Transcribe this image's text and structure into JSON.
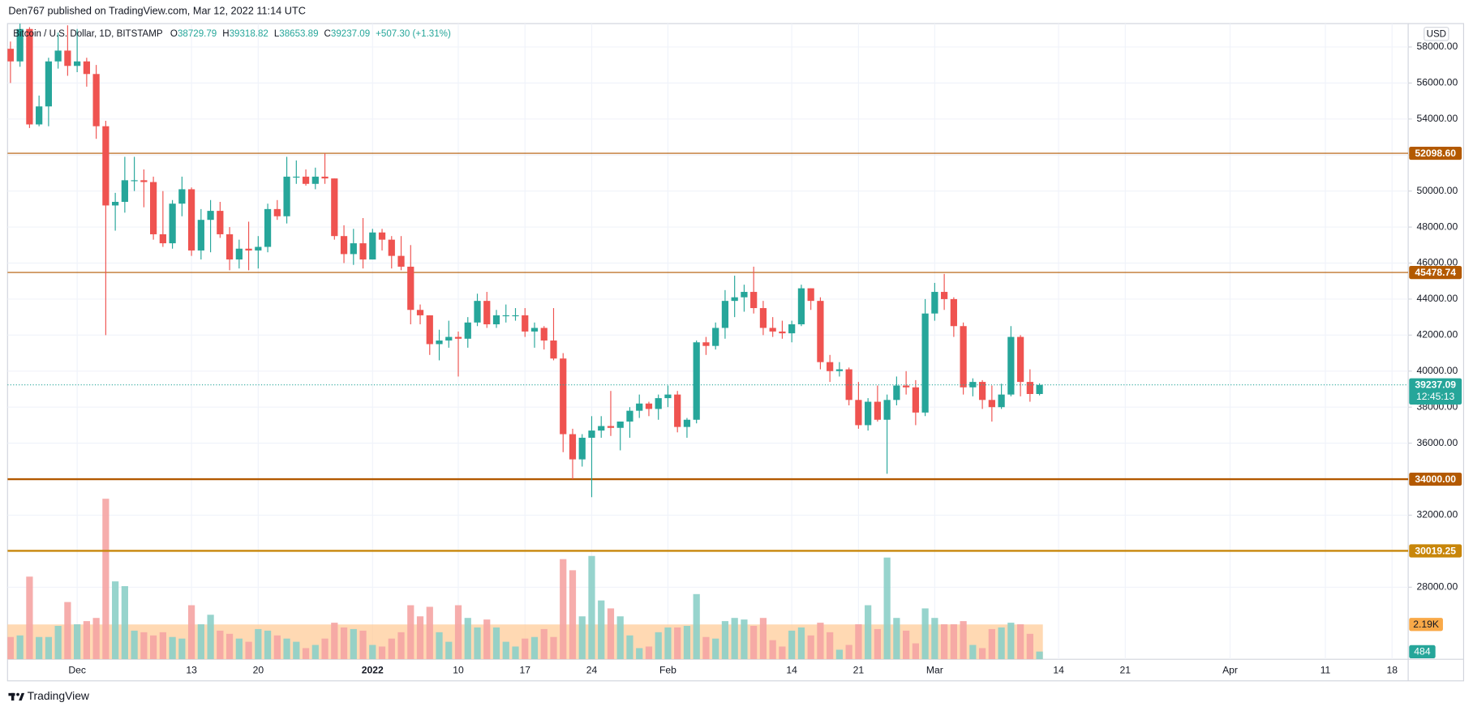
{
  "header": {
    "published": "Den767 published on TradingView.com, Mar 12, 2022 11:14 UTC"
  },
  "footer": {
    "brand": "TradingView"
  },
  "chart_data": {
    "type": "candlestick",
    "title": "Bitcoin / U.S. Dollar, 1D, BITSTAMP",
    "currency": "USD",
    "legend": {
      "o_prefix": "O",
      "h_prefix": "H",
      "l_prefix": "L",
      "c_prefix": "C",
      "change": "+507.30 (+1.31%)"
    },
    "x": [
      "2021-11-24",
      "2021-11-25",
      "2021-11-26",
      "2021-11-27",
      "2021-11-28",
      "2021-11-29",
      "2021-11-30",
      "2021-12-01",
      "2021-12-02",
      "2021-12-03",
      "2021-12-04",
      "2021-12-05",
      "2021-12-06",
      "2021-12-07",
      "2021-12-08",
      "2021-12-09",
      "2021-12-10",
      "2021-12-11",
      "2021-12-12",
      "2021-12-13",
      "2021-12-14",
      "2021-12-15",
      "2021-12-16",
      "2021-12-17",
      "2021-12-18",
      "2021-12-19",
      "2021-12-20",
      "2021-12-21",
      "2021-12-22",
      "2021-12-23",
      "2021-12-24",
      "2021-12-25",
      "2021-12-26",
      "2021-12-27",
      "2021-12-28",
      "2021-12-29",
      "2021-12-30",
      "2021-12-31",
      "2022-01-01",
      "2022-01-02",
      "2022-01-03",
      "2022-01-04",
      "2022-01-05",
      "2022-01-06",
      "2022-01-07",
      "2022-01-08",
      "2022-01-09",
      "2022-01-10",
      "2022-01-11",
      "2022-01-12",
      "2022-01-13",
      "2022-01-14",
      "2022-01-15",
      "2022-01-16",
      "2022-01-17",
      "2022-01-18",
      "2022-01-19",
      "2022-01-20",
      "2022-01-21",
      "2022-01-22",
      "2022-01-23",
      "2022-01-24",
      "2022-01-25",
      "2022-01-26",
      "2022-01-27",
      "2022-01-28",
      "2022-01-29",
      "2022-01-30",
      "2022-01-31",
      "2022-02-01",
      "2022-02-02",
      "2022-02-03",
      "2022-02-04",
      "2022-02-05",
      "2022-02-06",
      "2022-02-07",
      "2022-02-08",
      "2022-02-09",
      "2022-02-10",
      "2022-02-11",
      "2022-02-12",
      "2022-02-13",
      "2022-02-14",
      "2022-02-15",
      "2022-02-16",
      "2022-02-17",
      "2022-02-18",
      "2022-02-19",
      "2022-02-20",
      "2022-02-21",
      "2022-02-22",
      "2022-02-23",
      "2022-02-24",
      "2022-02-25",
      "2022-02-26",
      "2022-02-27",
      "2022-02-28",
      "2022-03-01",
      "2022-03-02",
      "2022-03-03",
      "2022-03-04",
      "2022-03-05",
      "2022-03-06",
      "2022-03-07",
      "2022-03-08",
      "2022-03-09",
      "2022-03-10",
      "2022-03-11",
      "2022-03-12"
    ],
    "open": [
      57900,
      57200,
      59000,
      53700,
      54700,
      57200,
      57800,
      56950,
      57200,
      56500,
      53600,
      49200,
      49400,
      50600,
      50600,
      50500,
      47600,
      47100,
      49300,
      50100,
      46700,
      48400,
      48900,
      47600,
      46200,
      46800,
      46700,
      46900,
      49000,
      48600,
      50800,
      50800,
      50400,
      50800,
      50700,
      47500,
      46500,
      47100,
      46200,
      47700,
      47300,
      46400,
      45800,
      43400,
      43100,
      41500,
      41700,
      41900,
      41800,
      42700,
      43900,
      42600,
      43100,
      43100,
      43100,
      42200,
      42400,
      41700,
      40700,
      36500,
      35100,
      36300,
      36700,
      36950,
      36850,
      37200,
      37800,
      38200,
      37900,
      38500,
      38700,
      36900,
      37300,
      41600,
      41400,
      42400,
      43900,
      44100,
      44400,
      43500,
      42400,
      42200,
      42100,
      42600,
      44600,
      43900,
      40500,
      40000,
      40100,
      38400,
      37000,
      38300,
      37300,
      38400,
      39200,
      39100,
      37700,
      43200,
      44400,
      44000,
      42500,
      39100,
      39400,
      38400,
      38000,
      38700,
      41900,
      39400,
      38729.79
    ],
    "high": [
      58300,
      59300,
      59100,
      55300,
      57400,
      58800,
      59200,
      59000,
      57400,
      57000,
      53900,
      49900,
      51900,
      51900,
      51200,
      50800,
      50000,
      49500,
      50800,
      50200,
      49000,
      49500,
      49400,
      48000,
      47300,
      48300,
      47500,
      49300,
      49500,
      51900,
      51700,
      51200,
      51300,
      52100,
      50700,
      48100,
      47900,
      48500,
      47900,
      47900,
      47500,
      47500,
      47000,
      43700,
      43100,
      42300,
      42800,
      42200,
      43000,
      44300,
      44400,
      43400,
      43700,
      43500,
      43500,
      42700,
      42500,
      43500,
      41000,
      36800,
      36500,
      37500,
      37500,
      38900,
      37200,
      38000,
      38700,
      38300,
      38700,
      39200,
      38900,
      37400,
      41700,
      41900,
      42700,
      44500,
      45300,
      44800,
      45800,
      43900,
      43000,
      42800,
      42800,
      44800,
      44600,
      44100,
      40900,
      40500,
      40200,
      39400,
      38500,
      39200,
      38700,
      39700,
      40000,
      39500,
      44000,
      44900,
      45400,
      44100,
      42700,
      39600,
      39500,
      39200,
      39300,
      42500,
      42000,
      40100,
      39318.82
    ],
    "low": [
      56000,
      56900,
      53500,
      53600,
      53600,
      56800,
      56400,
      56600,
      55800,
      52900,
      42000,
      47800,
      48800,
      50000,
      49100,
      47300,
      46900,
      46800,
      48600,
      46400,
      46200,
      46600,
      47400,
      45600,
      45700,
      45600,
      45700,
      46600,
      48400,
      48200,
      50400,
      50300,
      50100,
      50400,
      47300,
      46000,
      45900,
      45700,
      46200,
      46700,
      45700,
      45600,
      42600,
      42600,
      40900,
      40600,
      41300,
      39700,
      41300,
      42500,
      42400,
      42400,
      42700,
      42800,
      41900,
      41300,
      41200,
      40600,
      35500,
      34000,
      34700,
      33000,
      36300,
      36400,
      35600,
      36300,
      37400,
      37500,
      37300,
      38000,
      36600,
      36300,
      37100,
      40900,
      41200,
      41800,
      43000,
      43300,
      43200,
      42000,
      41900,
      41800,
      41600,
      42500,
      43400,
      40100,
      39400,
      39700,
      38100,
      36800,
      36700,
      37200,
      34300,
      38100,
      38700,
      37000,
      37500,
      42800,
      43400,
      41900,
      38700,
      38600,
      37900,
      37200,
      37900,
      38600,
      38600,
      38300,
      38653.89
    ],
    "close": [
      57200,
      59000,
      53700,
      54700,
      57200,
      57800,
      56950,
      57200,
      56500,
      53600,
      49200,
      49400,
      50600,
      50600,
      50500,
      47600,
      47100,
      49300,
      50100,
      46700,
      48400,
      48900,
      47600,
      46200,
      46800,
      46700,
      46900,
      49000,
      48600,
      50800,
      50800,
      50400,
      50800,
      50700,
      47500,
      46500,
      47100,
      46200,
      47700,
      47300,
      46400,
      45800,
      43400,
      43100,
      41500,
      41700,
      41900,
      41800,
      42700,
      43900,
      42600,
      43100,
      43100,
      43100,
      42200,
      42400,
      41700,
      40700,
      36500,
      35100,
      36300,
      36700,
      36950,
      36850,
      37200,
      37800,
      38200,
      37900,
      38500,
      38700,
      36900,
      37300,
      41600,
      41400,
      42400,
      43900,
      44100,
      44400,
      43500,
      42400,
      42200,
      42100,
      42600,
      44600,
      43900,
      40500,
      40000,
      40100,
      38400,
      37000,
      38300,
      37300,
      38400,
      39200,
      39100,
      37700,
      43200,
      44400,
      44000,
      42500,
      39100,
      39400,
      38400,
      38000,
      38700,
      41900,
      39400,
      38729.79,
      39237.09
    ],
    "up_color": "#26a69a",
    "down_color": "#ef5350",
    "xlim": [
      "2021-11-23",
      "2022-04-19"
    ],
    "xticks": [
      {
        "value": "2021-12-01",
        "label": "Dec"
      },
      {
        "value": "2021-12-13",
        "label": "13"
      },
      {
        "value": "2021-12-20",
        "label": "20"
      },
      {
        "value": "2022-01-01",
        "label": "2022"
      },
      {
        "value": "2022-01-10",
        "label": "10"
      },
      {
        "value": "2022-01-17",
        "label": "17"
      },
      {
        "value": "2022-01-24",
        "label": "24"
      },
      {
        "value": "2022-02-01",
        "label": "Feb"
      },
      {
        "value": "2022-02-14",
        "label": "14"
      },
      {
        "value": "2022-02-21",
        "label": "21"
      },
      {
        "value": "2022-03-01",
        "label": "Mar"
      },
      {
        "value": "2022-03-14",
        "label": "14"
      },
      {
        "value": "2022-03-21",
        "label": "21"
      },
      {
        "value": "2022-04-01",
        "label": "Apr"
      },
      {
        "value": "2022-04-11",
        "label": "11"
      },
      {
        "value": "2022-04-18",
        "label": "18"
      }
    ],
    "ylim": [
      24000,
      59300
    ],
    "yticks": [
      {
        "value": 28000,
        "label": "28000.00"
      },
      {
        "value": 30000,
        "label": "30000.00"
      },
      {
        "value": 32000,
        "label": "32000.00"
      },
      {
        "value": 34000,
        "label": "34000.00"
      },
      {
        "value": 36000,
        "label": "36000.00"
      },
      {
        "value": 38000,
        "label": "38000.00"
      },
      {
        "value": 40000,
        "label": "40000.00"
      },
      {
        "value": 42000,
        "label": "42000.00"
      },
      {
        "value": 44000,
        "label": "44000.00"
      },
      {
        "value": 46000,
        "label": "46000.00"
      },
      {
        "value": 48000,
        "label": "48000.00"
      },
      {
        "value": 50000,
        "label": "50000.00"
      },
      {
        "value": 52000,
        "label": "52000.00"
      },
      {
        "value": 54000,
        "label": "54000.00"
      },
      {
        "value": 56000,
        "label": "56000.00"
      },
      {
        "value": 58000,
        "label": "58000.00"
      }
    ],
    "grid": true,
    "levels": [
      {
        "value": 52098.6,
        "label": "52098.60",
        "color": "#b35900"
      },
      {
        "value": 45478.74,
        "label": "45478.74",
        "color": "#b35900"
      },
      {
        "value": 34000,
        "label": "34000.00",
        "color": "#b35900"
      },
      {
        "value": 30019.25,
        "label": "30019.25",
        "color": "#c8860a"
      }
    ],
    "countdown": "12:45:13",
    "volume": {
      "values": [
        1400,
        1500,
        5200,
        1400,
        1400,
        2100,
        3600,
        2200,
        2400,
        2600,
        10100,
        4900,
        4600,
        1800,
        1700,
        1500,
        1700,
        1400,
        1300,
        3400,
        2200,
        2800,
        1800,
        1600,
        1300,
        1100,
        1900,
        1800,
        1500,
        1300,
        1100,
        700,
        900,
        1300,
        2300,
        2000,
        1900,
        1800,
        900,
        800,
        1300,
        1700,
        3400,
        2700,
        3300,
        1700,
        1100,
        3400,
        2600,
        2000,
        2500,
        2000,
        1100,
        800,
        1300,
        1400,
        1900,
        1400,
        6300,
        5600,
        2700,
        6500,
        3700,
        3200,
        2700,
        1500,
        700,
        800,
        1700,
        2000,
        2000,
        2100,
        4100,
        1400,
        1300,
        2400,
        2600,
        2500,
        2100,
        2600,
        1200,
        800,
        1800,
        2000,
        1500,
        2300,
        1700,
        600,
        900,
        2200,
        3400,
        1900,
        6400,
        2600,
        1800,
        1000,
        3200,
        2600,
        2200,
        2200,
        2400,
        900,
        700,
        1900,
        2000,
        2300,
        2200,
        1600,
        484
      ],
      "up_color": "#8ccfc8",
      "down_color": "#f5a4a3",
      "ylim": [
        0,
        40000
      ],
      "ma": {
        "value": 2190,
        "label": "2.19K"
      },
      "ma_color": "#ffcc99"
    }
  }
}
